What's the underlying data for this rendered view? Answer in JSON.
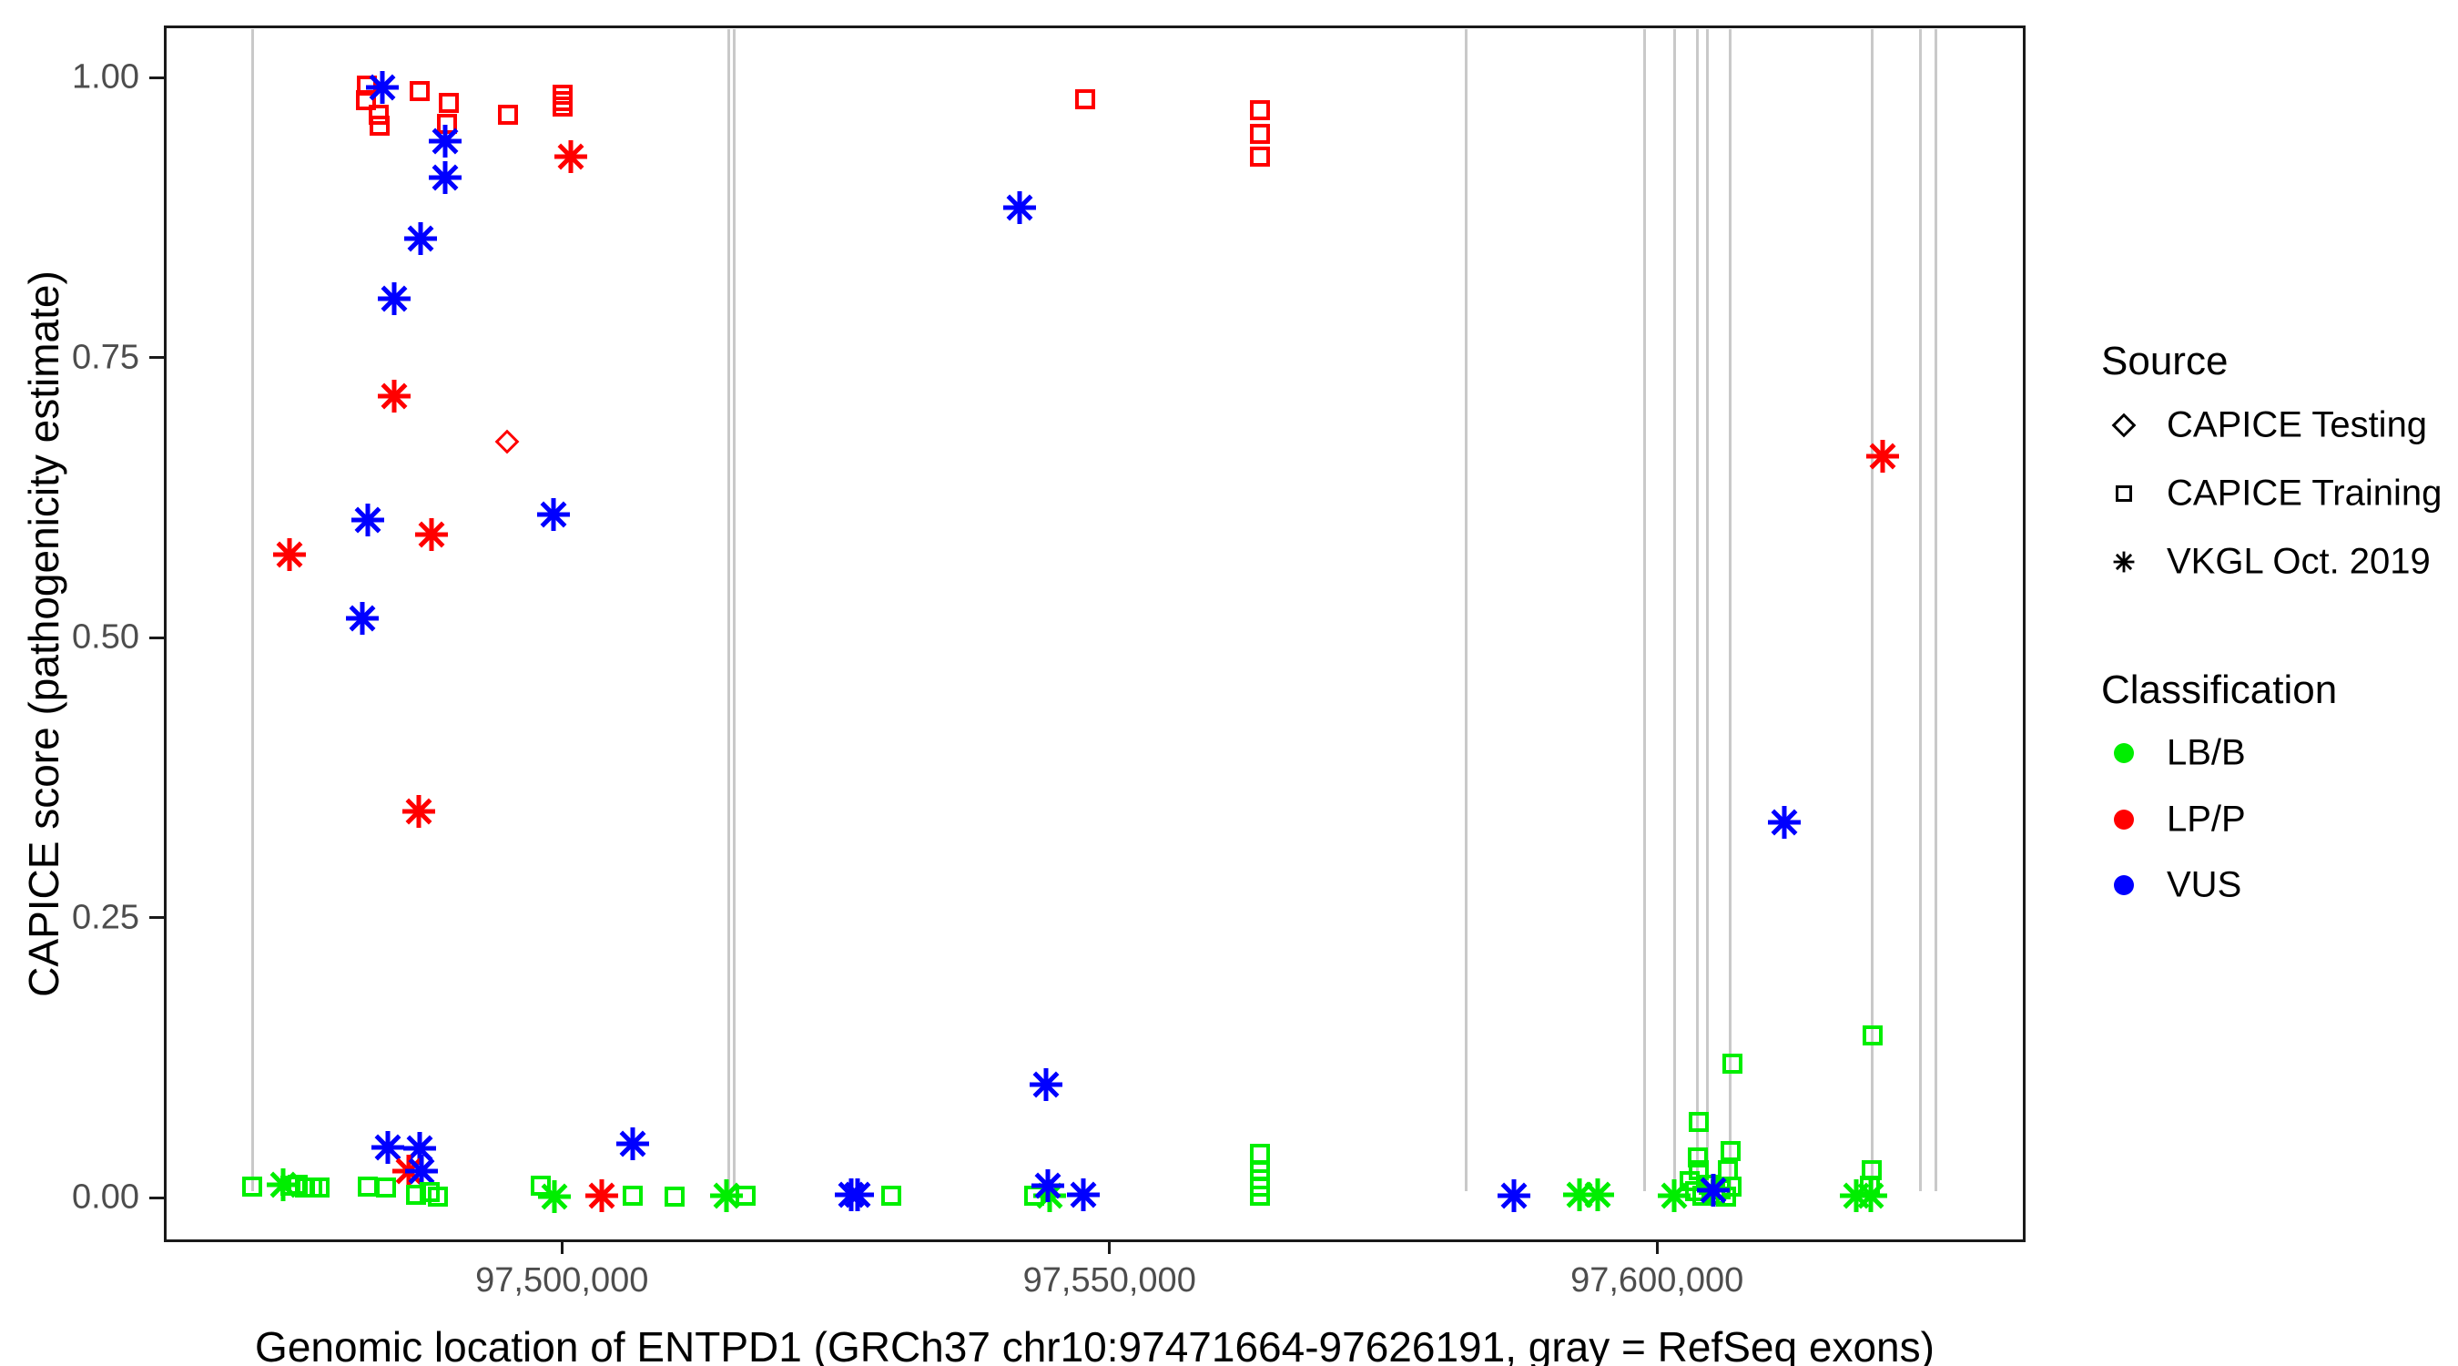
{
  "axes": {
    "x": {
      "title": "Genomic location of ENTPD1 (GRCh37 chr10:97471664-97626191, gray = RefSeq exons)",
      "ticks": [
        {
          "label": "97,500,000",
          "bp": 97500000
        },
        {
          "label": "97,550,000",
          "bp": 97550000
        },
        {
          "label": "97,600,000",
          "bp": 97600000
        }
      ]
    },
    "y": {
      "title": "CAPICE score (pathogenicity estimate)",
      "ticks": [
        {
          "label": "0.00",
          "value": 0.0
        },
        {
          "label": "0.25",
          "value": 0.25
        },
        {
          "label": "0.50",
          "value": 0.5
        },
        {
          "label": "0.75",
          "value": 0.75
        },
        {
          "label": "1.00",
          "value": 1.0
        }
      ]
    }
  },
  "legend": {
    "source": {
      "title": "Source",
      "items": [
        {
          "label": "CAPICE Testing",
          "marker": "diamond"
        },
        {
          "label": "CAPICE Training",
          "marker": "square"
        },
        {
          "label": "VKGL Oct. 2019",
          "marker": "asterisk"
        }
      ]
    },
    "classification": {
      "title": "Classification",
      "items": [
        {
          "label": "LB/B",
          "color": "#00ee00"
        },
        {
          "label": "LP/P",
          "color": "#ff0000"
        },
        {
          "label": "VUS",
          "color": "#0000ff"
        }
      ]
    }
  },
  "colors": {
    "LB/B": "#00ee00",
    "LP/P": "#ff0000",
    "VUS": "#0000ff",
    "exon_line": "#c9c9c9",
    "tick_text": "#4d4d4d"
  },
  "chart_data": {
    "type": "scatter",
    "title": "",
    "xlabel": "Genomic location of ENTPD1 (GRCh37 chr10:97471664-97626191, gray = RefSeq exons)",
    "ylabel": "CAPICE score (pathogenicity estimate)",
    "x_range_bp": [
      97463900,
      97633400
    ],
    "y_range": [
      -0.037,
      1.044
    ],
    "grid": false,
    "legend_position": "right",
    "marker_by_source": {
      "CAPICE Testing": "diamond",
      "CAPICE Training": "square",
      "VKGL Oct. 2019": "asterisk"
    },
    "color_by_classification": {
      "LB/B": "#00ee00",
      "LP/P": "#ff0000",
      "VUS": "#0000ff"
    },
    "refseq_exons_bp": [
      97471730,
      97515260,
      97515750,
      97582570,
      97598820,
      97601640,
      97603710,
      97604620,
      97606690,
      97619630,
      97624020,
      97625430
    ],
    "point_format": [
      "bp",
      "score",
      "classification",
      "source"
    ],
    "points": [
      [
        97482200,
        0.993,
        "LP/P",
        "CAPICE Training"
      ],
      [
        97482100,
        0.98,
        "LP/P",
        "CAPICE Training"
      ],
      [
        97483250,
        0.967,
        "LP/P",
        "CAPICE Training"
      ],
      [
        97483350,
        0.957,
        "LP/P",
        "CAPICE Training"
      ],
      [
        97487000,
        0.988,
        "LP/P",
        "CAPICE Training"
      ],
      [
        97489700,
        0.977,
        "LP/P",
        "CAPICE Training"
      ],
      [
        97489500,
        0.959,
        "LP/P",
        "CAPICE Training"
      ],
      [
        97495100,
        0.967,
        "LP/P",
        "CAPICE Training"
      ],
      [
        97500100,
        0.985,
        "LP/P",
        "CAPICE Training"
      ],
      [
        97500100,
        0.979,
        "LP/P",
        "CAPICE Training"
      ],
      [
        97500100,
        0.974,
        "LP/P",
        "CAPICE Training"
      ],
      [
        97547750,
        0.981,
        "LP/P",
        "CAPICE Training"
      ],
      [
        97563700,
        0.971,
        "LP/P",
        "CAPICE Training"
      ],
      [
        97563700,
        0.95,
        "LP/P",
        "CAPICE Training"
      ],
      [
        97563700,
        0.929,
        "LP/P",
        "CAPICE Training"
      ],
      [
        97483600,
        0.991,
        "VUS",
        "VKGL Oct. 2019"
      ],
      [
        97489300,
        0.943,
        "VUS",
        "VKGL Oct. 2019"
      ],
      [
        97489300,
        0.911,
        "VUS",
        "VKGL Oct. 2019"
      ],
      [
        97500800,
        0.929,
        "LP/P",
        "VKGL Oct. 2019"
      ],
      [
        97541800,
        0.884,
        "VUS",
        "VKGL Oct. 2019"
      ],
      [
        97487100,
        0.856,
        "VUS",
        "VKGL Oct. 2019"
      ],
      [
        97484700,
        0.803,
        "VUS",
        "VKGL Oct. 2019"
      ],
      [
        97484700,
        0.716,
        "LP/P",
        "VKGL Oct. 2019"
      ],
      [
        97495000,
        0.675,
        "LP/P",
        "CAPICE Testing"
      ],
      [
        97620600,
        0.662,
        "LP/P",
        "VKGL Oct. 2019"
      ],
      [
        97499200,
        0.61,
        "VUS",
        "VKGL Oct. 2019"
      ],
      [
        97482300,
        0.605,
        "VUS",
        "VKGL Oct. 2019"
      ],
      [
        97488100,
        0.592,
        "LP/P",
        "VKGL Oct. 2019"
      ],
      [
        97475100,
        0.574,
        "LP/P",
        "VKGL Oct. 2019"
      ],
      [
        97481800,
        0.517,
        "VUS",
        "VKGL Oct. 2019"
      ],
      [
        97486900,
        0.345,
        "LP/P",
        "VKGL Oct. 2019"
      ],
      [
        97611600,
        0.335,
        "VUS",
        "VKGL Oct. 2019"
      ],
      [
        97544200,
        0.101,
        "VUS",
        "VKGL Oct. 2019"
      ],
      [
        97484100,
        0.045,
        "VUS",
        "VKGL Oct. 2019"
      ],
      [
        97487000,
        0.044,
        "VUS",
        "VKGL Oct. 2019"
      ],
      [
        97506500,
        0.048,
        "VUS",
        "VKGL Oct. 2019"
      ],
      [
        97486000,
        0.024,
        "LP/P",
        "VKGL Oct. 2019"
      ],
      [
        97487200,
        0.024,
        "VUS",
        "VKGL Oct. 2019"
      ],
      [
        97471750,
        0.01,
        "LB/B",
        "CAPICE Training"
      ],
      [
        97474500,
        0.012,
        "LB/B",
        "VKGL Oct. 2019"
      ],
      [
        97475200,
        0.011,
        "LB/B",
        "CAPICE Training"
      ],
      [
        97475900,
        0.012,
        "LB/B",
        "CAPICE Training"
      ],
      [
        97476500,
        0.009,
        "LB/B",
        "CAPICE Training"
      ],
      [
        97477200,
        0.009,
        "LB/B",
        "CAPICE Training"
      ],
      [
        97477900,
        0.009,
        "LB/B",
        "CAPICE Training"
      ],
      [
        97482300,
        0.01,
        "LB/B",
        "CAPICE Training"
      ],
      [
        97483900,
        0.009,
        "LB/B",
        "CAPICE Training"
      ],
      [
        97486700,
        0.003,
        "LB/B",
        "CAPICE Training"
      ],
      [
        97487900,
        0.005,
        "LB/B",
        "CAPICE Training"
      ],
      [
        97488700,
        0.001,
        "LB/B",
        "CAPICE Training"
      ],
      [
        97498100,
        0.011,
        "LB/B",
        "CAPICE Training"
      ],
      [
        97499300,
        0.001,
        "LB/B",
        "VKGL Oct. 2019"
      ],
      [
        97503600,
        0.002,
        "LP/P",
        "VKGL Oct. 2019"
      ],
      [
        97506500,
        0.002,
        "LB/B",
        "CAPICE Training"
      ],
      [
        97510300,
        0.001,
        "LB/B",
        "CAPICE Training"
      ],
      [
        97515000,
        0.002,
        "LB/B",
        "VKGL Oct. 2019"
      ],
      [
        97516800,
        0.002,
        "LB/B",
        "CAPICE Training"
      ],
      [
        97526400,
        0.003,
        "VUS",
        "VKGL Oct. 2019"
      ],
      [
        97527000,
        0.003,
        "VUS",
        "VKGL Oct. 2019"
      ],
      [
        97530100,
        0.002,
        "LB/B",
        "CAPICE Training"
      ],
      [
        97543100,
        0.002,
        "LB/B",
        "CAPICE Training"
      ],
      [
        97544500,
        0.002,
        "LB/B",
        "VKGL Oct. 2019"
      ],
      [
        97544400,
        0.011,
        "VUS",
        "VKGL Oct. 2019"
      ],
      [
        97547600,
        0.003,
        "VUS",
        "VKGL Oct. 2019"
      ],
      [
        97563700,
        0.039,
        "LB/B",
        "CAPICE Training"
      ],
      [
        97563700,
        0.024,
        "LB/B",
        "CAPICE Training"
      ],
      [
        97563700,
        0.017,
        "LB/B",
        "CAPICE Training"
      ],
      [
        97563700,
        0.01,
        "LB/B",
        "CAPICE Training"
      ],
      [
        97563700,
        0.002,
        "LB/B",
        "CAPICE Training"
      ],
      [
        97586900,
        0.002,
        "VUS",
        "VKGL Oct. 2019"
      ],
      [
        97592900,
        0.003,
        "LB/B",
        "VKGL Oct. 2019"
      ],
      [
        97594600,
        0.003,
        "LB/B",
        "VKGL Oct. 2019"
      ],
      [
        97601550,
        0.002,
        "LB/B",
        "VKGL Oct. 2019"
      ],
      [
        97603800,
        0.068,
        "LB/B",
        "CAPICE Training"
      ],
      [
        97603700,
        0.036,
        "LB/B",
        "CAPICE Training"
      ],
      [
        97603800,
        0.025,
        "LB/B",
        "CAPICE Training"
      ],
      [
        97603000,
        0.015,
        "LB/B",
        "CAPICE Training"
      ],
      [
        97603500,
        0.006,
        "LB/B",
        "CAPICE Training"
      ],
      [
        97604100,
        0.002,
        "LB/B",
        "CAPICE Training"
      ],
      [
        97604700,
        0.012,
        "LB/B",
        "CAPICE Training"
      ],
      [
        97605300,
        0.003,
        "LB/B",
        "CAPICE Training"
      ],
      [
        97605800,
        0.008,
        "LB/B",
        "CAPICE Training"
      ],
      [
        97606300,
        0.001,
        "LB/B",
        "CAPICE Training"
      ],
      [
        97606800,
        0.01,
        "LB/B",
        "CAPICE Training"
      ],
      [
        97606700,
        0.042,
        "LB/B",
        "CAPICE Training"
      ],
      [
        97606500,
        0.025,
        "LB/B",
        "CAPICE Training"
      ],
      [
        97605100,
        0.007,
        "VUS",
        "VKGL Oct. 2019"
      ],
      [
        97606900,
        0.12,
        "LB/B",
        "CAPICE Training"
      ],
      [
        97618200,
        0.002,
        "LB/B",
        "VKGL Oct. 2019"
      ],
      [
        97619600,
        0.025,
        "LB/B",
        "CAPICE Training"
      ],
      [
        97619400,
        0.011,
        "LB/B",
        "CAPICE Training"
      ],
      [
        97619500,
        0.002,
        "LB/B",
        "VKGL Oct. 2019"
      ],
      [
        97619700,
        0.145,
        "LB/B",
        "CAPICE Training"
      ]
    ]
  }
}
